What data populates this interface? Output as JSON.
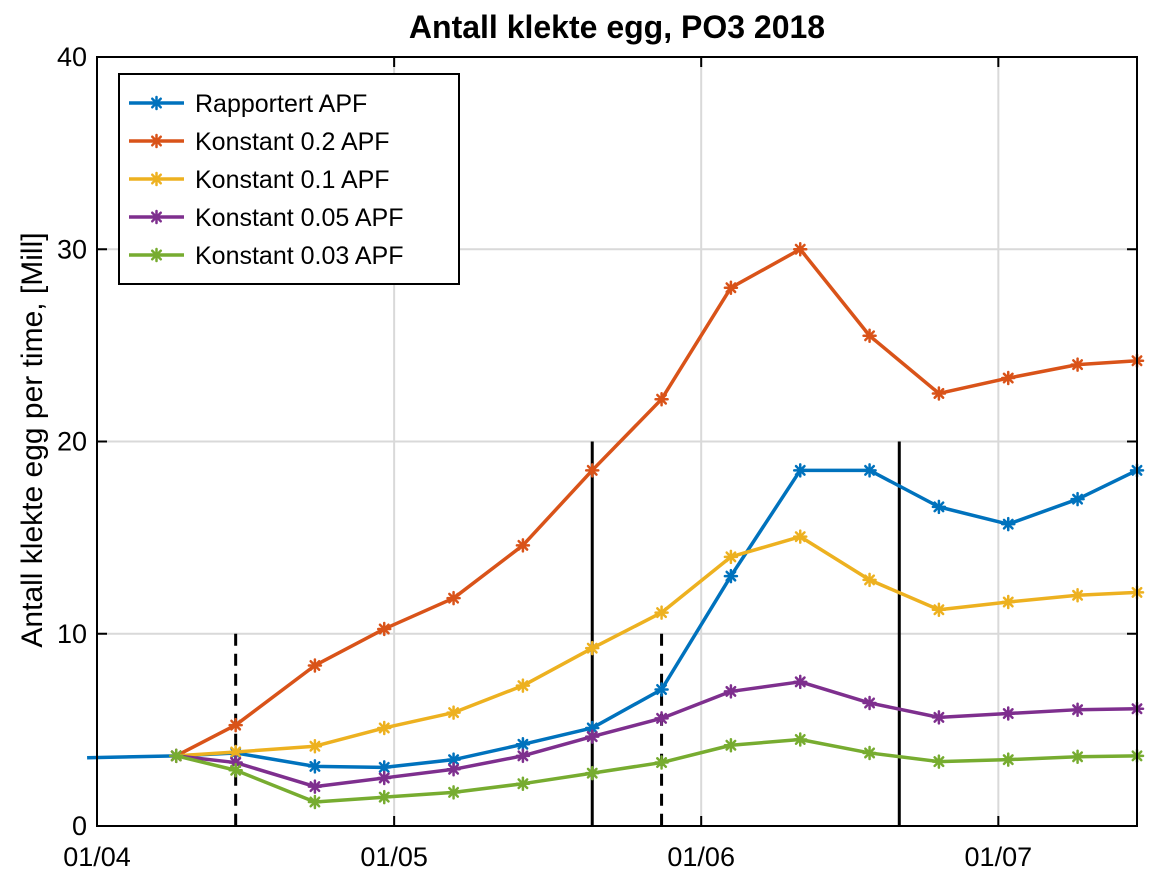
{
  "chart_data": {
    "type": "line",
    "title": "Antall klekte egg, PO3 2018",
    "xlabel": "",
    "ylabel": "Antall klekte egg per time, [Mill]",
    "x_tick_labels": [
      "01/04",
      "01/05",
      "01/06",
      "01/07"
    ],
    "x_ticks": [
      "2018-04-01",
      "2018-05-01",
      "2018-06-01",
      "2018-07-01"
    ],
    "xlim": [
      "2018-04-01",
      "2018-07-15"
    ],
    "ylim": [
      0,
      40
    ],
    "y_ticks": [
      0,
      10,
      20,
      30,
      40
    ],
    "y_tick_labels": [
      "0",
      "10",
      "20",
      "30",
      "40"
    ],
    "grid": true,
    "legend_position": "top-left",
    "x": [
      "2018-03-31",
      "2018-04-09",
      "2018-04-15",
      "2018-04-23",
      "2018-04-30",
      "2018-05-07",
      "2018-05-14",
      "2018-05-21",
      "2018-05-28",
      "2018-06-04",
      "2018-06-11",
      "2018-06-18",
      "2018-06-25",
      "2018-07-02",
      "2018-07-09",
      "2018-07-15"
    ],
    "series": [
      {
        "name": "Rapportert APF",
        "color": "#0072BD",
        "values": [
          3.55,
          3.65,
          3.8,
          3.1,
          3.05,
          3.45,
          4.25,
          5.1,
          7.1,
          13.0,
          18.5,
          18.5,
          16.6,
          15.7,
          17.0,
          18.5
        ]
      },
      {
        "name": "Konstant 0.2 APF",
        "color": "#D95319",
        "values": [
          null,
          3.65,
          5.25,
          8.35,
          10.25,
          11.85,
          14.6,
          18.5,
          22.2,
          28.0,
          30.0,
          25.5,
          22.5,
          23.3,
          24.0,
          24.2
        ]
      },
      {
        "name": "Konstant 0.1 APF",
        "color": "#EDB120",
        "values": [
          null,
          3.65,
          3.85,
          4.15,
          5.1,
          5.9,
          7.3,
          9.25,
          11.1,
          14.0,
          15.05,
          12.8,
          11.25,
          11.65,
          12.0,
          12.15
        ]
      },
      {
        "name": "Konstant 0.05 APF",
        "color": "#7E2F8E",
        "values": [
          null,
          3.65,
          3.3,
          2.05,
          2.5,
          2.95,
          3.65,
          4.65,
          5.6,
          7.0,
          7.5,
          6.4,
          5.65,
          5.85,
          6.05,
          6.1
        ]
      },
      {
        "name": "Konstant 0.03 APF",
        "color": "#77AC30",
        "values": [
          null,
          3.65,
          2.9,
          1.25,
          1.5,
          1.75,
          2.2,
          2.75,
          3.3,
          4.2,
          4.5,
          3.8,
          3.35,
          3.45,
          3.6,
          3.65
        ]
      }
    ],
    "vertical_lines": [
      {
        "x": "2018-04-15",
        "ymax": 10,
        "style": "dashed"
      },
      {
        "x": "2018-05-21",
        "ymax": 20,
        "style": "solid"
      },
      {
        "x": "2018-05-28",
        "ymax": 10,
        "style": "dashed"
      },
      {
        "x": "2018-06-21",
        "ymax": 20,
        "style": "solid"
      }
    ]
  }
}
